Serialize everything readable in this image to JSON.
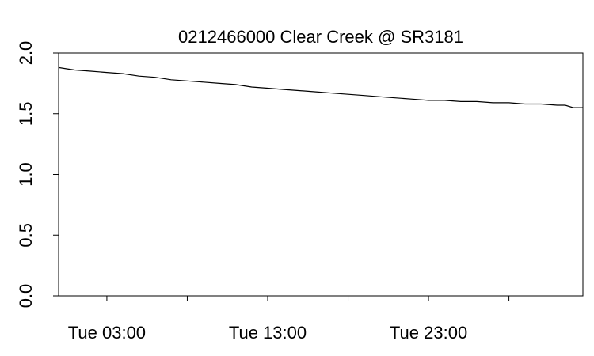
{
  "chart_data": {
    "type": "line",
    "title": "0212466000 Clear Creek @ SR3181",
    "xlabel": "",
    "ylabel": "",
    "x_tick_labels": [
      "Tue 03:00",
      "Tue 13:00",
      "Tue 23:00"
    ],
    "x_tick_hours": [
      3,
      8,
      13,
      18,
      23,
      28
    ],
    "x_range_hours": [
      0.0,
      32.6
    ],
    "ylim": [
      0.0,
      2.0
    ],
    "y_ticks": [
      0.0,
      0.5,
      1.0,
      1.5,
      2.0
    ],
    "y_tick_labels": [
      "0.0",
      "0.5",
      "1.0",
      "1.5",
      "2.0"
    ],
    "grid": false,
    "x_axis_unit": "hours",
    "series": [
      {
        "x": [
          0.0,
          0.5,
          1.0,
          2.0,
          3.0,
          4.0,
          5.0,
          6.0,
          7.0,
          8.0,
          9.0,
          10.0,
          11.0,
          12.0,
          13.0,
          14.0,
          15.0,
          16.0,
          17.0,
          18.0,
          19.0,
          20.0,
          21.0,
          22.0,
          23.0,
          24.0,
          25.0,
          26.0,
          27.0,
          28.0,
          29.0,
          30.0,
          31.0,
          31.5,
          32.0,
          32.6
        ],
        "y": [
          1.88,
          1.87,
          1.86,
          1.85,
          1.84,
          1.83,
          1.81,
          1.8,
          1.78,
          1.77,
          1.76,
          1.75,
          1.74,
          1.72,
          1.71,
          1.7,
          1.69,
          1.68,
          1.67,
          1.66,
          1.65,
          1.64,
          1.63,
          1.62,
          1.61,
          1.61,
          1.6,
          1.6,
          1.59,
          1.59,
          1.58,
          1.58,
          1.57,
          1.57,
          1.55,
          1.55
        ]
      }
    ]
  }
}
